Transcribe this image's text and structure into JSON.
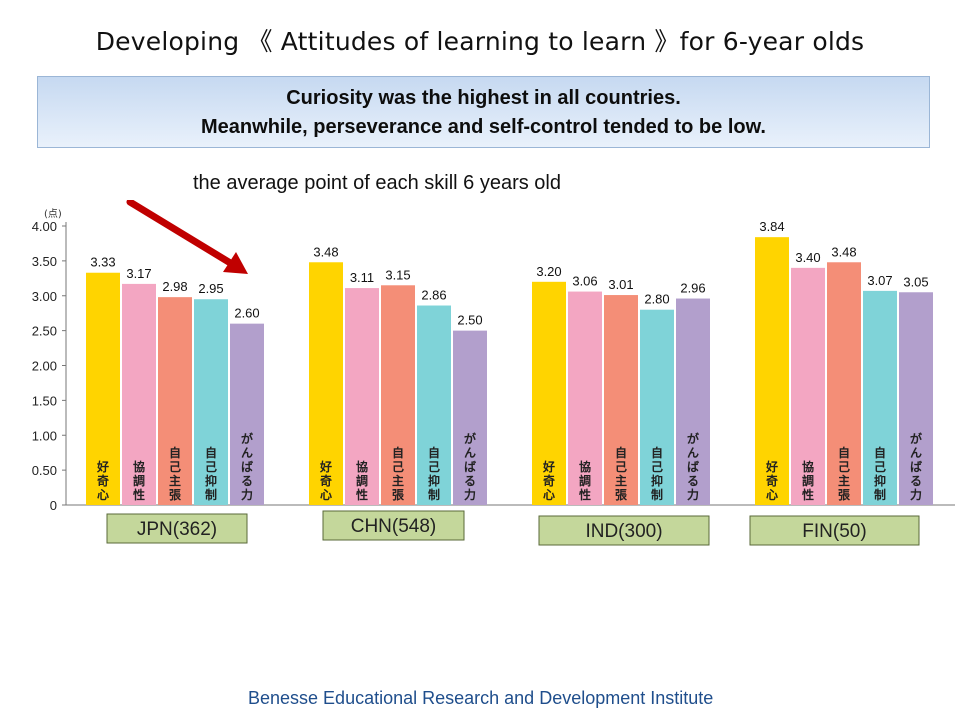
{
  "title": "Developing 《 Attitudes of learning to learn 》for 6-year olds",
  "callout": {
    "line1": "Curiosity was the highest in all countries.",
    "line2": "Meanwhile, perseverance and self-control tended to be low."
  },
  "subtitle": "the average point of each skill 6 years old",
  "footer": "Benesse Educational Research and Development Institute",
  "colors": {
    "curiosity": "#ffd400",
    "cooperation": "#f3a6c2",
    "self_assertion": "#f48e77",
    "self_control": "#7fd3d8",
    "perseverance": "#b29fcc",
    "arrow": "#c00000",
    "group_label_bg": "#c4d79b"
  },
  "chart_data": {
    "type": "bar",
    "y_unit": "(点)",
    "ylim": [
      0,
      4
    ],
    "yticks": [
      "4.00",
      "3.50",
      "3.00",
      "2.50",
      "2.00",
      "1.50",
      "1.00",
      "0.50",
      "0"
    ],
    "categories": [
      "JPN(362)",
      "CHN(548)",
      "IND(300)",
      "FIN(50)"
    ],
    "series": [
      {
        "name": "好奇心",
        "values": [
          3.33,
          3.48,
          3.2,
          3.84
        ]
      },
      {
        "name": "協調性",
        "values": [
          3.17,
          3.11,
          3.06,
          3.4
        ]
      },
      {
        "name": "自己主張",
        "values": [
          2.98,
          3.15,
          3.01,
          3.48
        ]
      },
      {
        "name": "自己抑制",
        "values": [
          2.95,
          2.86,
          2.8,
          3.07
        ]
      },
      {
        "name": "がんばる力",
        "values": [
          2.6,
          2.5,
          2.96,
          3.05
        ]
      }
    ],
    "value_labels": [
      [
        "3.33",
        "3.17",
        "2.98",
        "2.95",
        "2.60"
      ],
      [
        "3.48",
        "3.11",
        "3.15",
        "2.86",
        "2.50"
      ],
      [
        "3.20",
        "3.06",
        "3.01",
        "2.80",
        "2.96"
      ],
      [
        "3.84",
        "3.40",
        "3.48",
        "3.07",
        "3.05"
      ]
    ],
    "grid": false,
    "legend": "none"
  }
}
